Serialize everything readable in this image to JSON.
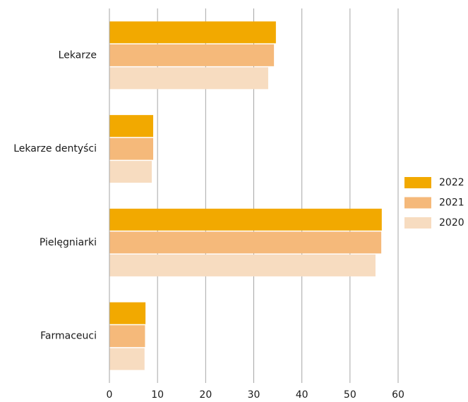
{
  "chart_data": {
    "type": "hbar",
    "categories": [
      "Lekarze",
      "Lekarze dentyści",
      "Pielęgniarki",
      "Farmaceuci"
    ],
    "series": [
      {
        "name": "2022",
        "color": "#f2a900",
        "values": [
          34.6,
          9.1,
          56.6,
          7.5
        ]
      },
      {
        "name": "2021",
        "color": "#f5b97a",
        "values": [
          34.2,
          9.1,
          56.5,
          7.4
        ]
      },
      {
        "name": "2020",
        "color": "#f7dcc0",
        "values": [
          33.0,
          8.8,
          55.3,
          7.3
        ]
      }
    ],
    "xlim": [
      0,
      60
    ],
    "xticks": [
      0,
      10,
      20,
      30,
      40,
      50,
      60
    ],
    "grid": true,
    "legend": "right"
  }
}
